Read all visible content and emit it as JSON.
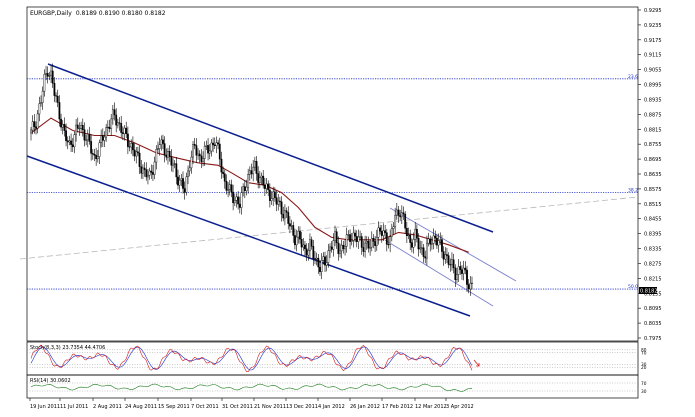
{
  "header": {
    "symbol": "EURGBP,Daily",
    "ohlc": "0.8189 0.8190 0.8180 0.8182"
  },
  "chart_data": {
    "type": "candlestick",
    "price_axis_ticks": [
      "0.9295",
      "0.9235",
      "0.9175",
      "0.9115",
      "0.9055",
      "0.8995",
      "0.8935",
      "0.8875",
      "0.8815",
      "0.8755",
      "0.8695",
      "0.8635",
      "0.8575",
      "0.8515",
      "0.8455",
      "0.8395",
      "0.8335",
      "0.8275",
      "0.8215",
      "0.8155",
      "0.8095",
      "0.8035",
      "0.7975"
    ],
    "current_price": "0.8182",
    "ylim": [
      0.7975,
      0.9295
    ],
    "x_ticks": [
      "19 Jun 2011",
      "11 Jul 2011",
      "2 Aug 2011",
      "24 Aug 2011",
      "15 Sep 2011",
      "7 Oct 2011",
      "31 Oct 2011",
      "21 Nov 2011",
      "13 Dec 2011",
      "4 Jan 2012",
      "26 Jan 2012",
      "17 Feb 2012",
      "12 Mar 2012",
      "3 Apr 2012"
    ],
    "fib_levels": [
      {
        "label": "23.6",
        "price": 0.9018
      },
      {
        "label": "38.2",
        "price": 0.856
      },
      {
        "label": "50.0",
        "price": 0.8172
      }
    ],
    "close_path": [
      [
        0,
        0.88
      ],
      [
        3,
        0.885
      ],
      [
        6,
        0.893
      ],
      [
        8,
        0.901
      ],
      [
        10,
        0.906
      ],
      [
        12,
        0.903
      ],
      [
        14,
        0.896
      ],
      [
        17,
        0.888
      ],
      [
        20,
        0.879
      ],
      [
        23,
        0.875
      ],
      [
        26,
        0.879
      ],
      [
        29,
        0.883
      ],
      [
        32,
        0.88
      ],
      [
        35,
        0.875
      ],
      [
        38,
        0.87
      ],
      [
        41,
        0.874
      ],
      [
        44,
        0.88
      ],
      [
        47,
        0.884
      ],
      [
        50,
        0.887
      ],
      [
        53,
        0.883
      ],
      [
        56,
        0.879
      ],
      [
        59,
        0.876
      ],
      [
        62,
        0.872
      ],
      [
        65,
        0.868
      ],
      [
        68,
        0.864
      ],
      [
        71,
        0.862
      ],
      [
        74,
        0.869
      ],
      [
        77,
        0.876
      ],
      [
        80,
        0.874
      ],
      [
        83,
        0.869
      ],
      [
        86,
        0.866
      ],
      [
        89,
        0.86
      ],
      [
        92,
        0.857
      ],
      [
        95,
        0.869
      ],
      [
        98,
        0.874
      ],
      [
        101,
        0.87
      ],
      [
        104,
        0.872
      ],
      [
        107,
        0.874
      ],
      [
        110,
        0.877
      ],
      [
        113,
        0.87
      ],
      [
        116,
        0.86
      ],
      [
        119,
        0.856
      ],
      [
        122,
        0.854
      ],
      [
        125,
        0.851
      ],
      [
        128,
        0.859
      ],
      [
        131,
        0.864
      ],
      [
        134,
        0.866
      ],
      [
        137,
        0.862
      ],
      [
        140,
        0.858
      ],
      [
        143,
        0.856
      ],
      [
        146,
        0.853
      ],
      [
        149,
        0.851
      ],
      [
        152,
        0.847
      ],
      [
        155,
        0.843
      ],
      [
        158,
        0.838
      ],
      [
        161,
        0.837
      ],
      [
        164,
        0.833
      ],
      [
        167,
        0.834
      ],
      [
        170,
        0.83
      ],
      [
        173,
        0.826
      ],
      [
        176,
        0.828
      ],
      [
        179,
        0.834
      ],
      [
        182,
        0.837
      ],
      [
        185,
        0.833
      ],
      [
        188,
        0.835
      ],
      [
        191,
        0.839
      ],
      [
        194,
        0.838
      ],
      [
        197,
        0.836
      ],
      [
        200,
        0.835
      ],
      [
        203,
        0.834
      ],
      [
        206,
        0.838
      ],
      [
        209,
        0.84
      ],
      [
        212,
        0.839
      ],
      [
        215,
        0.836
      ],
      [
        218,
        0.847
      ],
      [
        221,
        0.849
      ],
      [
        224,
        0.842
      ],
      [
        227,
        0.836
      ],
      [
        230,
        0.838
      ],
      [
        233,
        0.834
      ],
      [
        236,
        0.831
      ],
      [
        239,
        0.837
      ],
      [
        242,
        0.838
      ],
      [
        245,
        0.834
      ],
      [
        248,
        0.831
      ],
      [
        251,
        0.827
      ],
      [
        254,
        0.824
      ],
      [
        257,
        0.825
      ],
      [
        260,
        0.823
      ],
      [
        263,
        0.8182
      ]
    ],
    "moving_average_path": [
      [
        0,
        0.88
      ],
      [
        12,
        0.886
      ],
      [
        25,
        0.881
      ],
      [
        38,
        0.879
      ],
      [
        50,
        0.879
      ],
      [
        62,
        0.876
      ],
      [
        75,
        0.872
      ],
      [
        87,
        0.87
      ],
      [
        100,
        0.868
      ],
      [
        112,
        0.867
      ],
      [
        120,
        0.864
      ],
      [
        130,
        0.86
      ],
      [
        140,
        0.859
      ],
      [
        150,
        0.856
      ],
      [
        160,
        0.85
      ],
      [
        170,
        0.842
      ],
      [
        180,
        0.838
      ],
      [
        190,
        0.837
      ],
      [
        200,
        0.837
      ],
      [
        210,
        0.837
      ],
      [
        220,
        0.84
      ],
      [
        230,
        0.839
      ],
      [
        240,
        0.837
      ],
      [
        250,
        0.835
      ],
      [
        262,
        0.832
      ]
    ],
    "oscillators": [
      {
        "label": "Stoch(8,3,3) 23.7354 44.4706",
        "levels": [
          "80",
          "70",
          "30",
          "20"
        ],
        "ylim": [
          0,
          100
        ]
      },
      {
        "label": "RSI(14) 30.0602",
        "levels": [
          "70",
          "30"
        ],
        "ylim": [
          0,
          100
        ]
      }
    ],
    "grid": false,
    "colors": {
      "channel": "#0c1f8f",
      "inner_channel": "#7b7fd0",
      "moving_average": "#8b1a1a",
      "fib_line": "#1b2fc5",
      "trendline": "#b8b8b8",
      "candles": "#000000",
      "stoch_main": "#d11d1d",
      "stoch_signal": "#1c2fd0",
      "rsi": "#1a7a1a"
    }
  }
}
